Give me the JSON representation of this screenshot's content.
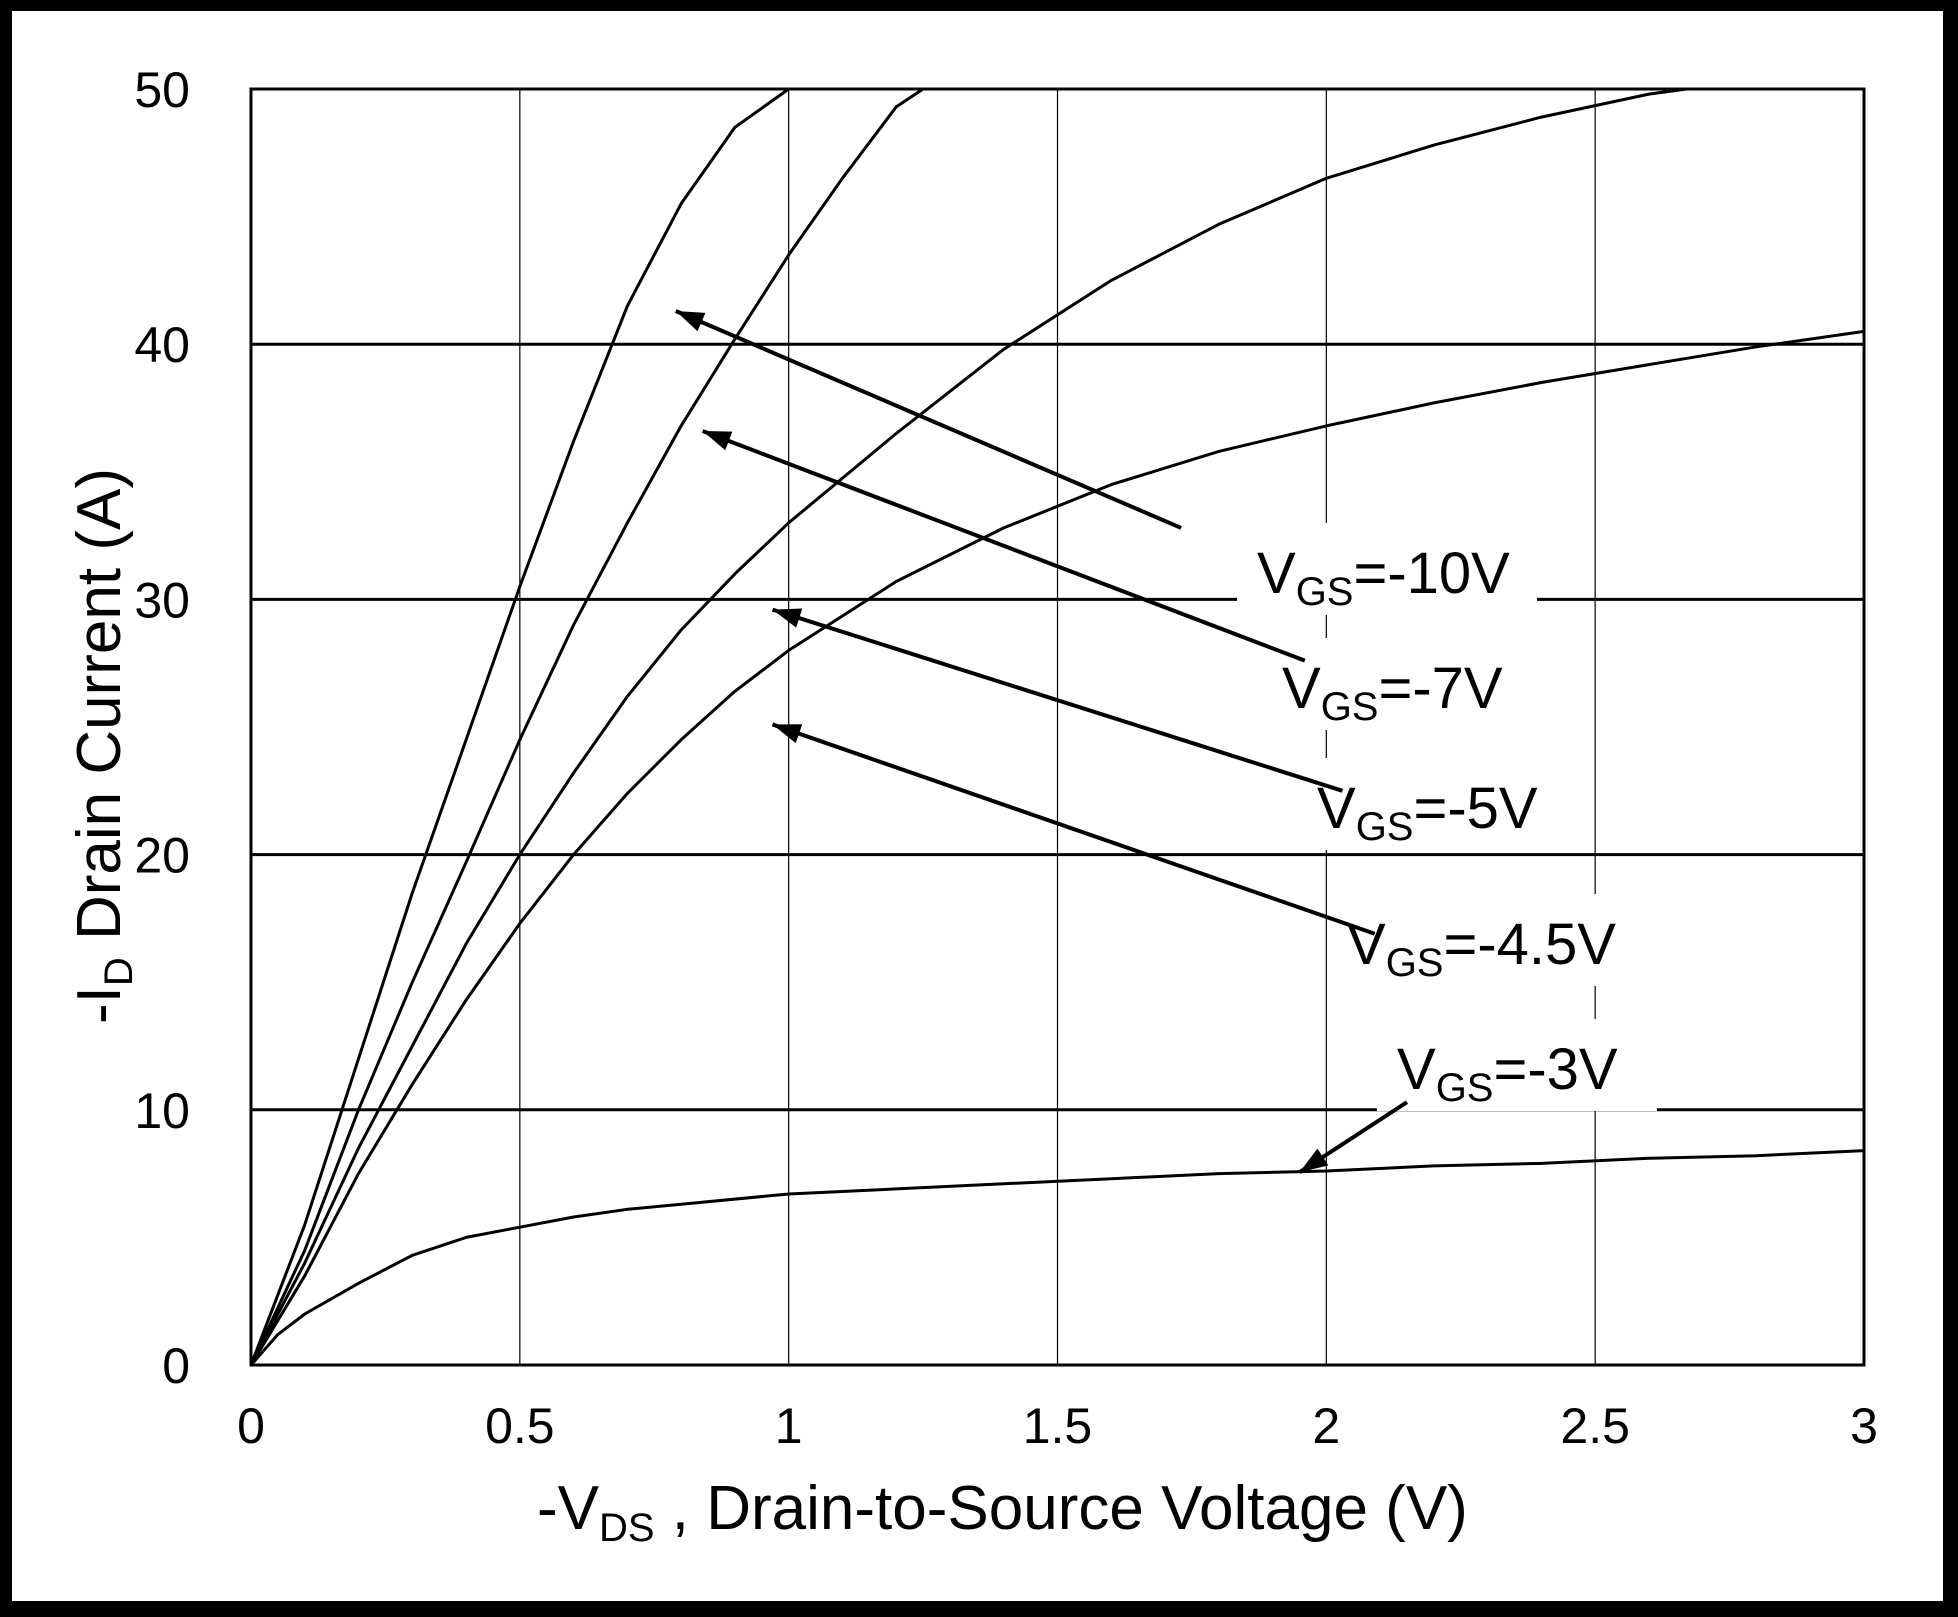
{
  "chart_data": {
    "type": "line",
    "title": "",
    "xlabel": {
      "prefix": "-V",
      "sub": "DS",
      "suffix": " , Drain-to-Source Voltage (V)"
    },
    "ylabel": {
      "prefix": "-I",
      "sub": "D",
      "suffix": " Drain Current (A)"
    },
    "xlim": [
      0,
      3
    ],
    "ylim": [
      0,
      50
    ],
    "xticks": [
      0,
      0.5,
      1,
      1.5,
      2,
      2.5,
      3
    ],
    "xtick_labels": [
      "0",
      "0.5",
      "1",
      "1.5",
      "2",
      "2.5",
      "3"
    ],
    "yticks": [
      0,
      10,
      20,
      30,
      40,
      50
    ],
    "ytick_labels": [
      "0",
      "10",
      "20",
      "30",
      "40",
      "50"
    ],
    "grid": true,
    "colors": {
      "line": "#000000",
      "grid": "#000000",
      "background": "#ffffff",
      "frame": "#000000"
    },
    "series": [
      {
        "name": "VGS=-10V",
        "label_main": "V",
        "label_sub": "GS",
        "label_suffix": "=-10V",
        "x": [
          0,
          0.1,
          0.2,
          0.3,
          0.4,
          0.5,
          0.6,
          0.7,
          0.8,
          0.9,
          1.0
        ],
        "y": [
          0,
          5.5,
          12,
          18.5,
          24.5,
          30.5,
          36.2,
          41.5,
          45.5,
          48.5,
          50
        ]
      },
      {
        "name": "VGS=-7V",
        "label_main": "V",
        "label_sub": "GS",
        "label_suffix": "=-7V",
        "x": [
          0,
          0.1,
          0.2,
          0.3,
          0.4,
          0.5,
          0.6,
          0.7,
          0.8,
          0.9,
          1.0,
          1.1,
          1.2,
          1.25
        ],
        "y": [
          0,
          4.5,
          10,
          15,
          19.7,
          24.5,
          29,
          33,
          36.8,
          40.2,
          43.5,
          46.5,
          49.3,
          50
        ]
      },
      {
        "name": "VGS=-5V",
        "label_main": "V",
        "label_sub": "GS",
        "label_suffix": "=-5V",
        "x": [
          0,
          0.1,
          0.2,
          0.3,
          0.4,
          0.5,
          0.6,
          0.7,
          0.8,
          0.9,
          1.0,
          1.2,
          1.4,
          1.6,
          1.8,
          2.0,
          2.2,
          2.4,
          2.6,
          2.67
        ],
        "y": [
          0,
          4,
          8.5,
          12.5,
          16.5,
          20,
          23.2,
          26.2,
          28.8,
          31,
          33,
          36.5,
          39.8,
          42.5,
          44.7,
          46.5,
          47.8,
          48.9,
          49.8,
          50
        ]
      },
      {
        "name": "VGS=-4.5V",
        "label_main": "V",
        "label_sub": "GS",
        "label_suffix": "=-4.5V",
        "x": [
          0,
          0.1,
          0.2,
          0.3,
          0.4,
          0.5,
          0.6,
          0.7,
          0.8,
          0.9,
          1.0,
          1.2,
          1.4,
          1.6,
          1.8,
          2.0,
          2.2,
          2.4,
          2.6,
          2.8,
          3.0
        ],
        "y": [
          0,
          3.5,
          7.5,
          11,
          14.3,
          17.3,
          20,
          22.4,
          24.5,
          26.4,
          28,
          30.7,
          32.8,
          34.5,
          35.8,
          36.8,
          37.7,
          38.5,
          39.2,
          39.9,
          40.5
        ]
      },
      {
        "name": "VGS=-3V",
        "label_main": "V",
        "label_sub": "GS",
        "label_suffix": "=-3V",
        "x": [
          0,
          0.05,
          0.1,
          0.2,
          0.3,
          0.4,
          0.5,
          0.6,
          0.7,
          0.8,
          1.0,
          1.2,
          1.4,
          1.6,
          1.8,
          2.0,
          2.2,
          2.4,
          2.6,
          2.8,
          3.0
        ],
        "y": [
          0,
          1.2,
          2,
          3.2,
          4.3,
          5,
          5.4,
          5.8,
          6.1,
          6.3,
          6.7,
          6.9,
          7.1,
          7.3,
          7.5,
          7.6,
          7.8,
          7.9,
          8.1,
          8.2,
          8.4
        ]
      }
    ],
    "annotations": [
      {
        "series": 0,
        "arrow_to": [
          0.79,
          41.3
        ],
        "arrow_from": [
          1.73,
          32.8
        ]
      },
      {
        "series": 1,
        "arrow_to": [
          0.84,
          36.6
        ],
        "arrow_from": [
          1.96,
          27.6
        ]
      },
      {
        "series": 2,
        "arrow_to": [
          0.97,
          29.6
        ],
        "arrow_from": [
          2.03,
          22.5
        ]
      },
      {
        "series": 3,
        "arrow_to": [
          0.97,
          25.1
        ],
        "arrow_from": [
          2.09,
          16.9
        ]
      },
      {
        "series": 4,
        "arrow_to": [
          1.95,
          7.55
        ],
        "arrow_from": [
          2.15,
          10.3
        ]
      }
    ]
  }
}
